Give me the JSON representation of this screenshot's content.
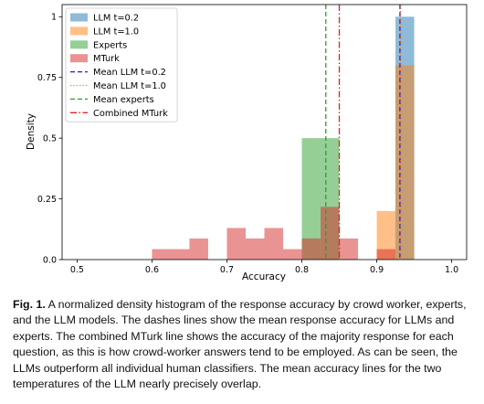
{
  "chart_data": {
    "type": "histogram",
    "xlabel": "Accuracy",
    "ylabel": "Density",
    "xlim": [
      0.48,
      1.02
    ],
    "ylim": [
      0,
      1.05
    ],
    "xticks": [
      "0.5",
      "0.6",
      "0.7",
      "0.8",
      "0.9",
      "1.0"
    ],
    "yticks": [
      "0.0",
      "0.25",
      "0.5",
      "0.75",
      "1"
    ],
    "xtick_values": [
      0.5,
      0.6,
      0.7,
      0.8,
      0.9,
      1.0
    ],
    "ytick_values": [
      0,
      0.25,
      0.5,
      0.75,
      1
    ],
    "bin_width": 0.025,
    "legend_position": "upper left",
    "series": [
      {
        "name": "LLM t=0.2",
        "kind": "bars",
        "color": "#1f77b4",
        "bins": [
          {
            "x": 0.925,
            "density": 1.0
          }
        ]
      },
      {
        "name": "LLM t=1.0",
        "kind": "bars",
        "color": "#ff7f0e",
        "bins": [
          {
            "x": 0.9,
            "density": 0.2
          },
          {
            "x": 0.925,
            "density": 0.8
          }
        ]
      },
      {
        "name": "Experts",
        "kind": "bars",
        "color": "#2ca02c",
        "bins": [
          {
            "x": 0.8,
            "density": 0.5
          },
          {
            "x": 0.825,
            "density": 0.5
          }
        ]
      },
      {
        "name": "MTurk",
        "kind": "bars",
        "color": "#d62728",
        "bins": [
          {
            "x": 0.6,
            "density": 0.043
          },
          {
            "x": 0.625,
            "density": 0.043
          },
          {
            "x": 0.65,
            "density": 0.087
          },
          {
            "x": 0.7,
            "density": 0.13
          },
          {
            "x": 0.725,
            "density": 0.087
          },
          {
            "x": 0.75,
            "density": 0.13
          },
          {
            "x": 0.775,
            "density": 0.043
          },
          {
            "x": 0.8,
            "density": 0.087
          },
          {
            "x": 0.825,
            "density": 0.217
          },
          {
            "x": 0.85,
            "density": 0.087
          },
          {
            "x": 0.9,
            "density": 0.043
          }
        ]
      },
      {
        "name": "Mean LLM t=0.2",
        "kind": "vline",
        "color": "#1f1fcc",
        "style": "dashed",
        "x": 0.931
      },
      {
        "name": "Mean LLM t=1.0",
        "kind": "vline",
        "color": "#ff7f0e",
        "style": "dotted",
        "x": 0.932
      },
      {
        "name": "Mean experts",
        "kind": "vline",
        "color": "#2ca02c",
        "style": "dashed",
        "x": 0.832
      },
      {
        "name": "Combined MTurk",
        "kind": "vline",
        "color": "#d62728",
        "style": "dashdot",
        "x": 0.85
      }
    ]
  },
  "caption": {
    "label": "Fig. 1.",
    "text": " A normalized density histogram of the response accuracy by crowd worker, experts, and the LLM models. The dashes lines show the mean response accuracy for LLMs and experts. The combined MTurk line shows the accuracy of the majority response for each question, as this is how crowd-worker answers tend to be employed. As can be seen, the LLMs outperform all individual human classifiers. The mean accuracy lines for the two temperatures of the LLM nearly precisely overlap."
  }
}
